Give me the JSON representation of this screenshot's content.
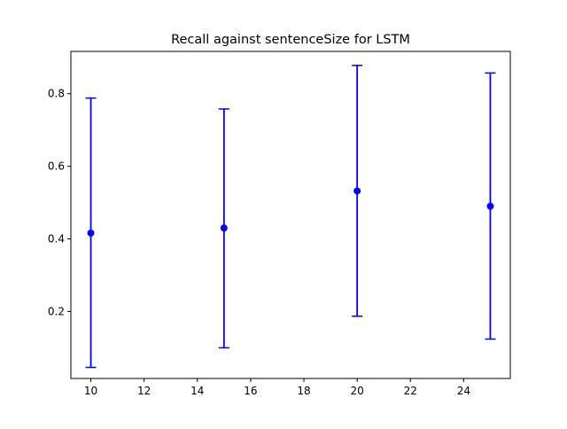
{
  "chart_data": {
    "type": "scatter",
    "title": "Recall against sentenceSize for LSTM",
    "xlabel": "",
    "ylabel": "",
    "xlim": [
      9.25,
      25.75
    ],
    "ylim": [
      0.0155,
      0.9165
    ],
    "x_ticks": [
      10,
      12,
      14,
      16,
      18,
      20,
      22,
      24
    ],
    "y_ticks": [
      0.2,
      0.4,
      0.6,
      0.8
    ],
    "x_tick_labels": [
      "10",
      "12",
      "14",
      "16",
      "18",
      "20",
      "22",
      "24"
    ],
    "y_tick_labels": [
      "0.2",
      "0.4",
      "0.6",
      "0.8"
    ],
    "grid": false,
    "legend": "none",
    "series": [
      {
        "color": "#0000ff",
        "x": [
          10,
          15,
          20,
          25
        ],
        "y": [
          0.416,
          0.43,
          0.532,
          0.49
        ],
        "error_lower": [
          0.046,
          0.1,
          0.187,
          0.124
        ],
        "error_upper": [
          0.788,
          0.758,
          0.878,
          0.857
        ]
      }
    ]
  }
}
